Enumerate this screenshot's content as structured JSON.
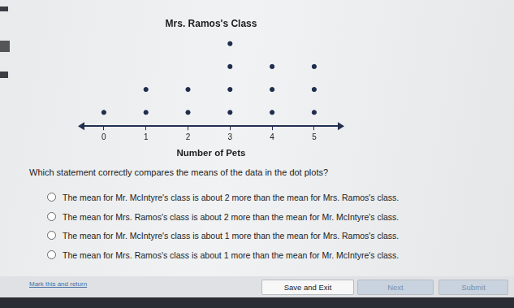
{
  "chart_data": {
    "type": "dot",
    "title": "Mrs. Ramos's Class",
    "x_label": "Number of Pets",
    "x": [
      0,
      1,
      2,
      3,
      4,
      5
    ],
    "values": [
      1,
      2,
      2,
      4,
      3,
      3
    ],
    "xlim": [
      -0.5,
      5.6
    ],
    "xticks": [
      0,
      1,
      2,
      3,
      4,
      5
    ],
    "grid": false,
    "tick_labels": "x",
    "color": "#1f2d4d"
  },
  "question": "Which statement correctly compares the means of the data in the dot plots?",
  "options": [
    "The mean for Mr. McIntyre's class is about 2 more than the mean for Mrs. Ramos's class.",
    "The mean for Mrs. Ramos's class is about 2 more than the mean for Mr. McIntyre's class.",
    "The mean for Mr. McIntyre's class is about 1 more than the mean for Mrs. Ramos's class.",
    "The mean for Mrs. Ramos's class is about 1 more than the mean for Mr. McIntyre's class."
  ],
  "footer": {
    "link": "Mark this and return",
    "buttons": [
      "Save and Exit",
      "Next",
      "Submit"
    ]
  }
}
